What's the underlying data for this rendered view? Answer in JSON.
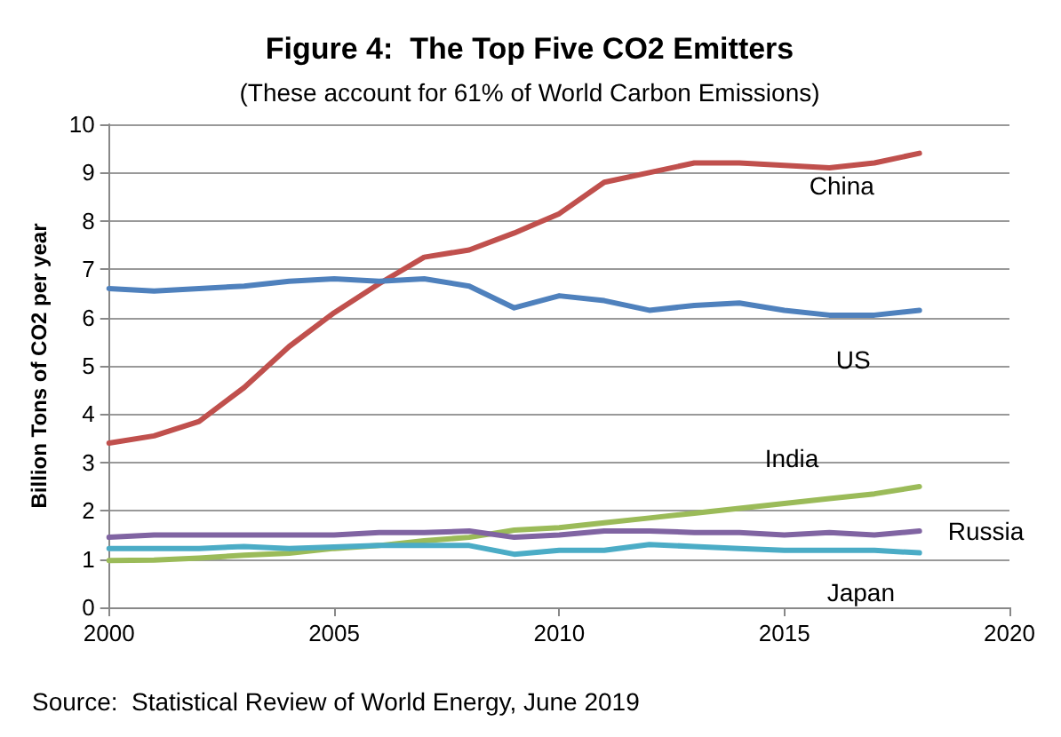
{
  "chart_data": {
    "type": "line",
    "title": "Figure 4:  The Top Five CO2 Emitters",
    "subtitle": "(These account for 61% of World Carbon Emissions)",
    "ylabel": "Billion Tons of CO2 per year",
    "annotations": [
      "Source:  Statistical Review of World Energy, June 2019"
    ],
    "x": [
      2000,
      2001,
      2002,
      2003,
      2004,
      2005,
      2006,
      2007,
      2008,
      2009,
      2010,
      2011,
      2012,
      2013,
      2014,
      2015,
      2016,
      2017,
      2018
    ],
    "series": [
      {
        "name": "China",
        "color": "#c0504d",
        "values": [
          3.4,
          3.55,
          3.85,
          4.55,
          5.4,
          6.1,
          6.7,
          7.25,
          7.4,
          7.75,
          8.15,
          8.8,
          9.0,
          9.2,
          9.2,
          9.15,
          9.1,
          9.2,
          9.4
        ]
      },
      {
        "name": "US",
        "color": "#4f81bd",
        "values": [
          6.6,
          6.55,
          6.6,
          6.65,
          6.75,
          6.8,
          6.75,
          6.8,
          6.65,
          6.2,
          6.45,
          6.35,
          6.15,
          6.25,
          6.3,
          6.15,
          6.05,
          6.05,
          6.15
        ]
      },
      {
        "name": "India",
        "color": "#9bbb59",
        "values": [
          0.97,
          0.98,
          1.02,
          1.08,
          1.12,
          1.22,
          1.28,
          1.38,
          1.45,
          1.6,
          1.65,
          1.75,
          1.85,
          1.95,
          2.05,
          2.15,
          2.25,
          2.35,
          2.5
        ]
      },
      {
        "name": "Russia",
        "color": "#8064a2",
        "values": [
          1.45,
          1.5,
          1.5,
          1.5,
          1.5,
          1.5,
          1.55,
          1.55,
          1.58,
          1.45,
          1.5,
          1.58,
          1.58,
          1.55,
          1.55,
          1.5,
          1.55,
          1.5,
          1.58
        ]
      },
      {
        "name": "Japan",
        "color": "#4bacc6",
        "values": [
          1.22,
          1.22,
          1.22,
          1.26,
          1.22,
          1.25,
          1.28,
          1.28,
          1.28,
          1.1,
          1.18,
          1.18,
          1.3,
          1.26,
          1.22,
          1.18,
          1.18,
          1.18,
          1.13
        ]
      }
    ],
    "xlim": [
      2000,
      2020
    ],
    "xticks": [
      2000,
      2005,
      2010,
      2015,
      2020
    ],
    "ylim": [
      0,
      10
    ],
    "yticks": [
      0,
      1,
      2,
      3,
      4,
      5,
      6,
      7,
      8,
      9,
      10
    ],
    "grid": "y",
    "legend": false,
    "marker": "none",
    "line_style": "solid"
  }
}
